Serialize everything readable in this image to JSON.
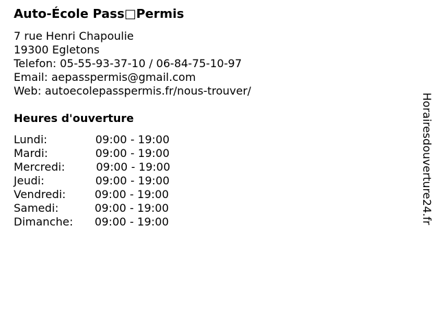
{
  "business": {
    "name": "Auto-École Pass□Permis",
    "address_line1": "7 rue Henri Chapoulie",
    "address_line2": "19300 Egletons",
    "phone": "Telefon: 05-55-93-37-10 / 06-84-75-10-97",
    "email": "Email: aepasspermis@gmail.com",
    "web": "Web: autoecolepasspermis.fr/nous-trouver/"
  },
  "hours": {
    "heading": "Heures d'ouverture",
    "days": [
      {
        "day": "Lundi:",
        "time": "09:00 - 19:00"
      },
      {
        "day": "Mardi:",
        "time": "09:00 - 19:00"
      },
      {
        "day": "Mercredi:",
        "time": "09:00 - 19:00"
      },
      {
        "day": "Jeudi:",
        "time": "09:00 - 19:00"
      },
      {
        "day": "Vendredi:",
        "time": "09:00 - 19:00"
      },
      {
        "day": "Samedi:",
        "time": "09:00 - 19:00"
      },
      {
        "day": "Dimanche:",
        "time": "09:00 - 19:00"
      }
    ]
  },
  "watermark": "Horairesdouverture24.fr"
}
